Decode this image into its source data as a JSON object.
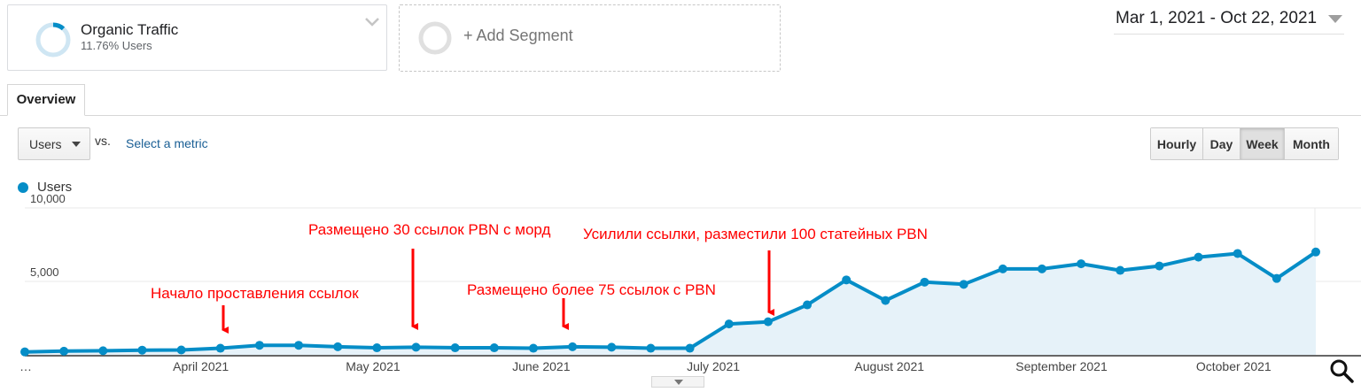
{
  "segment": {
    "title": "Organic Traffic",
    "subtitle": "11.76% Users",
    "ring_fill_pct": 11.76,
    "accent": "#058dc7"
  },
  "add_segment": {
    "label": "+ Add Segment"
  },
  "date_range": {
    "label": "Mar 1, 2021 - Oct 22, 2021"
  },
  "tabs": [
    {
      "label": "Overview",
      "active": true
    }
  ],
  "metric": {
    "selected": "Users",
    "vs_label": "vs.",
    "select_metric_label": "Select a metric"
  },
  "granularity": {
    "options": [
      "Hourly",
      "Day",
      "Week",
      "Month"
    ],
    "active": "Week"
  },
  "legend": {
    "series_label": "Users",
    "color": "#058dc7"
  },
  "chart_data": {
    "type": "area",
    "series": [
      {
        "name": "Users",
        "color": "#058dc7",
        "values": [
          200,
          250,
          280,
          320,
          330,
          450,
          650,
          650,
          550,
          480,
          520,
          480,
          480,
          450,
          550,
          520,
          450,
          450,
          2100,
          2250,
          3400,
          5100,
          3700,
          4950,
          4800,
          5850,
          5850,
          6200,
          5750,
          6050,
          6650,
          6900,
          5200,
          7000
        ]
      }
    ],
    "x_tick_labels": [
      "…",
      "April 2021",
      "May 2021",
      "June 2021",
      "July 2021",
      "August 2021",
      "September 2021",
      "October 2021"
    ],
    "y_tick_labels": [
      "10,000",
      "5,000"
    ],
    "ylim": [
      0,
      10000
    ],
    "grid": true,
    "annotations": [
      {
        "text": "Начало проставления ссылок",
        "point_index": 5,
        "color": "#ff0000"
      },
      {
        "text": "Размещено 30 ссылок PBN с морд",
        "point_index": 10,
        "color": "#ff0000"
      },
      {
        "text": "Размещено более 75 ссылок с PBN",
        "point_index": 14,
        "color": "#ff0000"
      },
      {
        "text": "Усилили ссылки, разместили 100 статейных PBN",
        "point_index": 19,
        "color": "#ff0000"
      }
    ]
  }
}
